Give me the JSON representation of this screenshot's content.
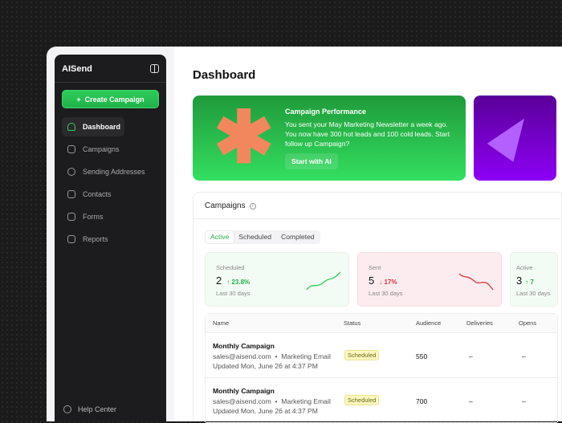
{
  "sidebar": {
    "brand": "AISend",
    "create_label": "Create Campaign",
    "items": [
      {
        "label": "Dashboard",
        "icon": "home-icon"
      },
      {
        "label": "Campaigns",
        "icon": "mail-icon"
      },
      {
        "label": "Sending Addresses",
        "icon": "at-icon"
      },
      {
        "label": "Contacts",
        "icon": "users-icon"
      },
      {
        "label": "Forms",
        "icon": "file-icon"
      },
      {
        "label": "Reports",
        "icon": "chart-icon"
      }
    ],
    "help": "Help Center"
  },
  "main": {
    "title": "Dashboard",
    "banner": {
      "title": "Campaign Performance",
      "body": "You sent your May Marketing Newsletter a week ago. You now have 300 hot leads and 100 cold leads. Start follow up Campaign?",
      "button": "Start with AI"
    },
    "campaigns": {
      "title": "Campaigns",
      "tabs": [
        "Active",
        "Scheduled",
        "Completed"
      ],
      "active_tab": "Active",
      "stats": [
        {
          "label": "Scheduled",
          "value": "2",
          "delta": "↑ 23.8%",
          "sub": "Last 30 days",
          "trend": "up",
          "color": "#22b04a"
        },
        {
          "label": "Sent",
          "value": "5",
          "delta": "↓ 17%",
          "sub": "Last 30 days",
          "trend": "down",
          "color": "#d9343f"
        },
        {
          "label": "Active",
          "value": "3",
          "delta": "↑ 7",
          "sub": "Last 30 days",
          "trend": "up",
          "color": "#22b04a"
        }
      ],
      "columns": [
        "Name",
        "Status",
        "Audience",
        "Deliveries",
        "Opens"
      ],
      "rows": [
        {
          "name": "Monthly Campaign",
          "meta": "sales@aisend.com  •  Marketing Email",
          "updated": "Updated Mon, June 26 at 4:37 PM",
          "status": "Scheduled",
          "audience": "550",
          "deliveries": "–",
          "opens": "–"
        },
        {
          "name": "Monthly Campaign",
          "meta": "sales@aisend.com  •  Marketing Email",
          "updated": "Updated Mon, June 26 at 4:37 PM",
          "status": "Scheduled",
          "audience": "700",
          "deliveries": "–",
          "opens": "–"
        }
      ]
    }
  }
}
